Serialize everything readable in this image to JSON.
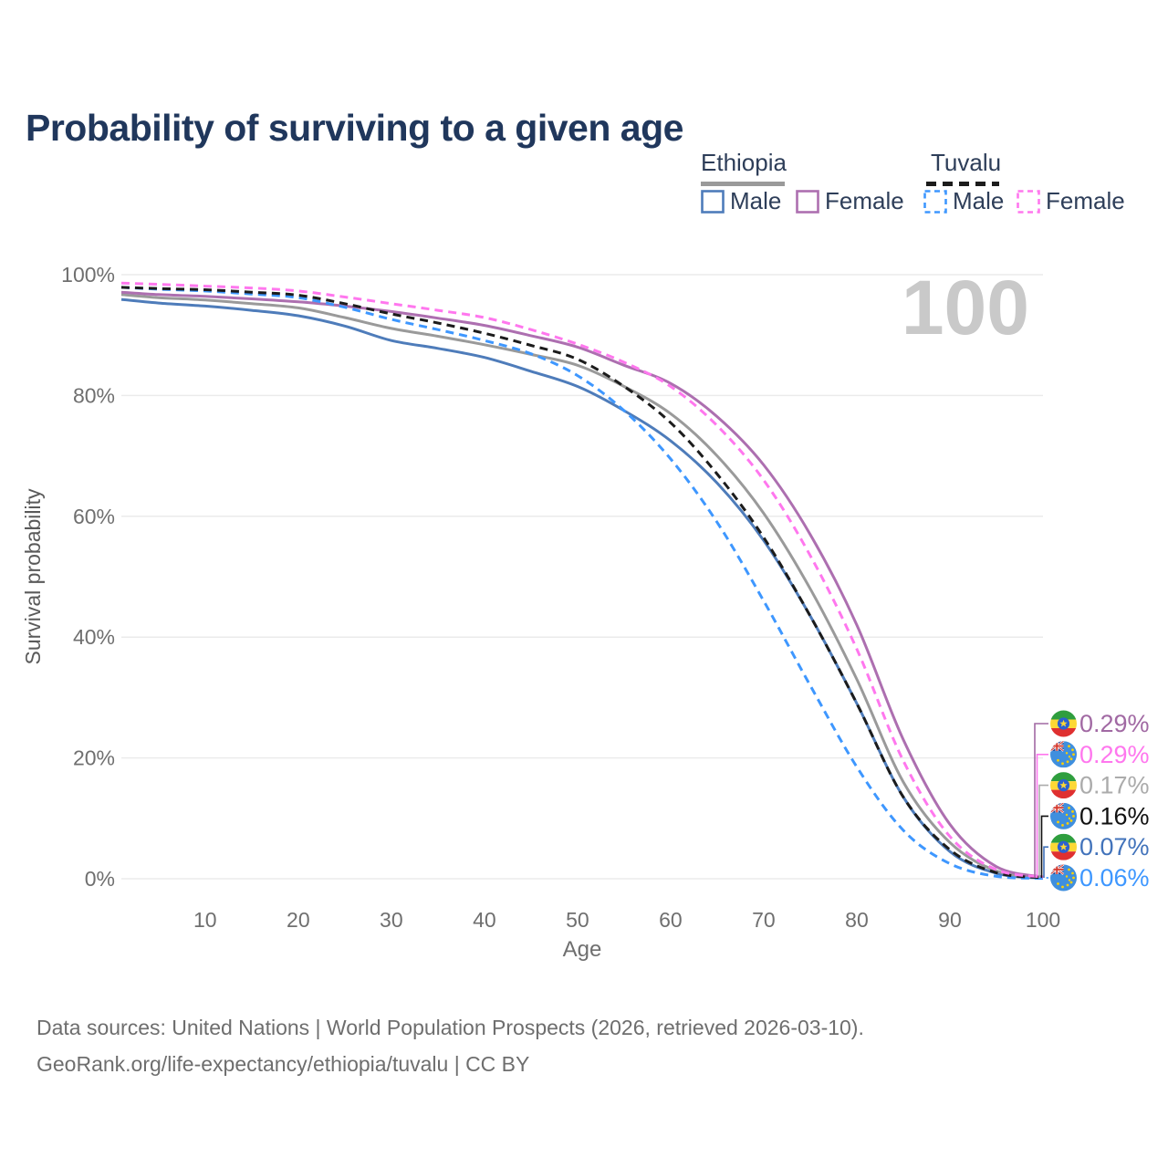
{
  "title": "Probability of surviving to a given age",
  "watermark": "100",
  "legend": {
    "groups": [
      {
        "label": "Ethiopia",
        "line_style": "solid",
        "underline_color": "#9a9a9a",
        "items": [
          {
            "label": "Male",
            "color": "#4e7cba"
          },
          {
            "label": "Female",
            "color": "#ad6fb0"
          }
        ]
      },
      {
        "label": "Tuvalu",
        "line_style": "dashed",
        "underline_color": "#1c1c1c",
        "items": [
          {
            "label": "Male",
            "color": "#3e97ff"
          },
          {
            "label": "Female",
            "color": "#ff77ee"
          }
        ]
      }
    ]
  },
  "chart_data": {
    "type": "line",
    "title": "Probability of surviving to a given age",
    "xlabel": "Age",
    "ylabel": "Survival probability",
    "xlim": [
      1,
      100
    ],
    "ylim": [
      0,
      100
    ],
    "grid": true,
    "legend_position": "top-right",
    "x_ticks": [
      10,
      20,
      30,
      40,
      50,
      60,
      70,
      80,
      90,
      100
    ],
    "y_ticks": [
      {
        "v": 0,
        "label": "0%"
      },
      {
        "v": 20,
        "label": "20%"
      },
      {
        "v": 40,
        "label": "40%"
      },
      {
        "v": 60,
        "label": "60%"
      },
      {
        "v": 80,
        "label": "80%"
      },
      {
        "v": 100,
        "label": "100%"
      }
    ],
    "x": [
      1,
      5,
      10,
      15,
      20,
      25,
      30,
      35,
      40,
      45,
      50,
      55,
      60,
      65,
      70,
      75,
      80,
      85,
      90,
      95,
      100
    ],
    "series": [
      {
        "name": "Ethiopia Male",
        "country": "ethiopia",
        "sex": "male",
        "color": "#4e7cba",
        "dash": false,
        "values": [
          95.9,
          95.3,
          94.8,
          94.1,
          93.2,
          91.5,
          89.1,
          87.8,
          86.3,
          84.0,
          81.5,
          77.5,
          72.5,
          65.5,
          56.0,
          43.5,
          29.0,
          13.5,
          4.5,
          0.9,
          0.07
        ]
      },
      {
        "name": "Ethiopia Total",
        "country": "ethiopia",
        "sex": "total",
        "color": "#9a9a9a",
        "dash": false,
        "values": [
          96.7,
          96.2,
          95.8,
          95.2,
          94.5,
          92.9,
          91.1,
          89.8,
          88.4,
          86.8,
          85.0,
          81.5,
          77.0,
          70.0,
          60.5,
          48.0,
          33.0,
          16.0,
          6.0,
          1.3,
          0.17
        ]
      },
      {
        "name": "Ethiopia Female",
        "country": "ethiopia",
        "sex": "female",
        "color": "#ad6fb0",
        "dash": false,
        "values": [
          97.1,
          96.7,
          96.4,
          96.0,
          95.5,
          94.8,
          93.9,
          92.8,
          91.6,
          89.9,
          88.0,
          85.0,
          82.0,
          76.5,
          68.5,
          57.0,
          42.0,
          23.0,
          9.0,
          2.0,
          0.29
        ]
      },
      {
        "name": "Tuvalu Male",
        "country": "tuvalu",
        "sex": "male",
        "color": "#3e97ff",
        "dash": true,
        "values": [
          97.9,
          97.6,
          97.3,
          96.8,
          96.2,
          94.6,
          92.6,
          90.9,
          89.1,
          86.9,
          83.3,
          77.5,
          69.5,
          59.0,
          46.0,
          32.0,
          18.5,
          8.0,
          2.5,
          0.4,
          0.06
        ]
      },
      {
        "name": "Tuvalu Total",
        "country": "tuvalu",
        "sex": "total",
        "color": "#1c1c1c",
        "dash": true,
        "values": [
          97.9,
          97.7,
          97.5,
          97.1,
          96.6,
          95.2,
          93.5,
          92.0,
          90.3,
          88.3,
          86.0,
          81.5,
          75.5,
          67.0,
          56.5,
          43.5,
          29.0,
          13.5,
          4.8,
          1.0,
          0.16
        ]
      },
      {
        "name": "Tuvalu Female",
        "country": "tuvalu",
        "sex": "female",
        "color": "#ff77ee",
        "dash": true,
        "values": [
          98.6,
          98.4,
          98.1,
          97.8,
          97.3,
          96.3,
          95.2,
          94.1,
          92.9,
          90.9,
          88.5,
          85.5,
          81.5,
          75.0,
          66.0,
          53.5,
          38.0,
          19.5,
          7.0,
          1.5,
          0.29
        ]
      }
    ],
    "end_labels": [
      {
        "flag": "ethiopia",
        "value": "0.29%",
        "color": "#a169a3"
      },
      {
        "flag": "tuvalu",
        "value": "0.29%",
        "color": "#ff77ee"
      },
      {
        "flag": "ethiopia",
        "value": "0.17%",
        "color": "#ababab"
      },
      {
        "flag": "tuvalu",
        "value": "0.16%",
        "color": "#111111"
      },
      {
        "flag": "ethiopia",
        "value": "0.07%",
        "color": "#4273bb"
      },
      {
        "flag": "tuvalu",
        "value": "0.06%",
        "color": "#3e97ff"
      }
    ]
  },
  "footer": {
    "line1": "Data sources: United Nations | World Population Prospects (2026, retrieved 2026-03-10).",
    "line2": "GeoRank.org/life-expectancy/ethiopia/tuvalu | CC BY"
  }
}
